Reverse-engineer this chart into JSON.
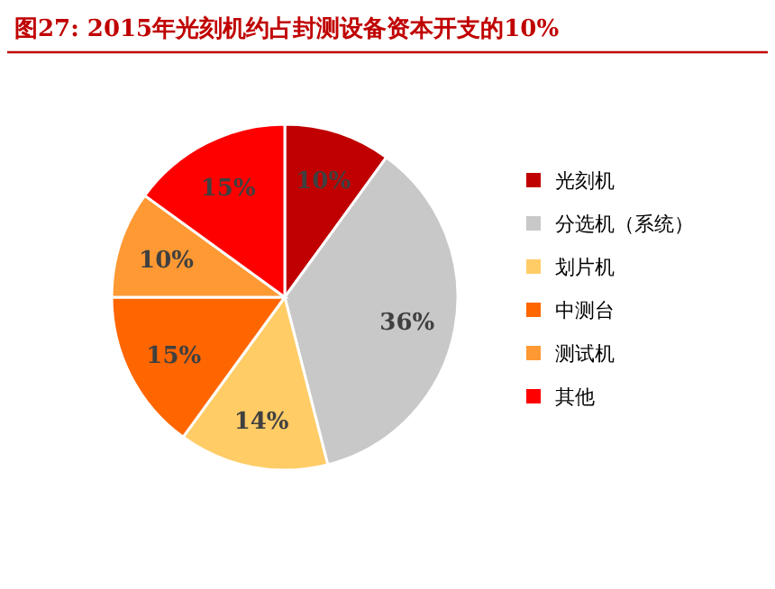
{
  "chart_data": {
    "type": "pie",
    "title": "图27:   2015年光刻机约占封测设备资本开支的10%",
    "categories": [
      "光刻机",
      "分选机（系统）",
      "划片机",
      "中测台",
      "测试机",
      "其他"
    ],
    "values": [
      10,
      36,
      14,
      15,
      10,
      15
    ],
    "colors": [
      "#c00000",
      "#c8c8c8",
      "#ffcc66",
      "#ff6600",
      "#ff9933",
      "#ff0000"
    ],
    "value_labels": [
      "10%",
      "36%",
      "14%",
      "15%",
      "10%",
      "15%"
    ],
    "legend": "right"
  }
}
